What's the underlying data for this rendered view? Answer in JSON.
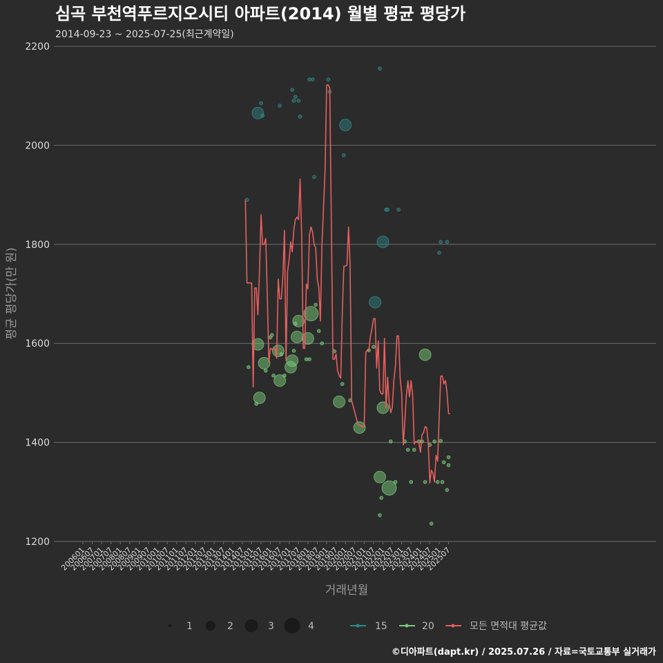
{
  "header": {
    "title": "심곡 부천역푸르지오시티 아파트(2014) 월별 평균 평당가",
    "subtitle": "2014-09-23 ~ 2025-07-25(최근계약일)"
  },
  "footer": {
    "credit": "©디아파트(dapt.kr) / 2025.07.26 / 자료=국토교통부 실거래가"
  },
  "legend": {
    "sizes": [
      "1",
      "2",
      "3",
      "4"
    ],
    "series": [
      "15",
      "20",
      "모든 면적대 평균값"
    ]
  },
  "colors": {
    "background": "#2b2b2b",
    "grid": "#6e6e6e",
    "series_15": "#2a7a7a",
    "series_20": "#6abf69",
    "average_line": "#e8605f"
  },
  "chart_data": {
    "type": "scatter",
    "title": "심곡 부천역푸르지오시티 아파트(2014) 월별 평균 평당가",
    "xlabel": "거래년월",
    "ylabel": "평균 평당가(만 원)",
    "ylim": [
      1200,
      2200
    ],
    "yticks": [
      1200,
      1400,
      1600,
      1800,
      2000,
      2200
    ],
    "xlim": [
      "2006-01",
      "2025-07"
    ],
    "xticks": [
      "200601",
      "200607",
      "200701",
      "200707",
      "200801",
      "200807",
      "200901",
      "200907",
      "201001",
      "201007",
      "201101",
      "201107",
      "201201",
      "201207",
      "201301",
      "201307",
      "201401",
      "201407",
      "201501",
      "201507",
      "201601",
      "201607",
      "201701",
      "201707",
      "201801",
      "201807",
      "201901",
      "201907",
      "202001",
      "202007",
      "202101",
      "202107",
      "202201",
      "202207",
      "202301",
      "202307",
      "202401",
      "202407",
      "202501",
      "202507"
    ],
    "grid": true,
    "legend_position": "bottom",
    "series": [
      {
        "name": "15",
        "points": [
          {
            "x": "2014-10",
            "y": 1890,
            "count": 1
          },
          {
            "x": "2015-05",
            "y": 2065,
            "count": 2
          },
          {
            "x": "2015-07",
            "y": 2085,
            "count": 1
          },
          {
            "x": "2015-08",
            "y": 2060,
            "count": 1
          },
          {
            "x": "2016-07",
            "y": 2080,
            "count": 1
          },
          {
            "x": "2017-03",
            "y": 2112,
            "count": 1
          },
          {
            "x": "2017-04",
            "y": 2090,
            "count": 1
          },
          {
            "x": "2017-05",
            "y": 2098,
            "count": 1
          },
          {
            "x": "2017-07",
            "y": 2090,
            "count": 1
          },
          {
            "x": "2017-08",
            "y": 2058,
            "count": 1
          },
          {
            "x": "2018-02",
            "y": 2133,
            "count": 1
          },
          {
            "x": "2018-04",
            "y": 2133,
            "count": 1
          },
          {
            "x": "2018-05",
            "y": 1936,
            "count": 1
          },
          {
            "x": "2019-02",
            "y": 2133,
            "count": 1
          },
          {
            "x": "2019-03",
            "y": 2108,
            "count": 1
          },
          {
            "x": "2019-12",
            "y": 1980,
            "count": 1
          },
          {
            "x": "2020-01",
            "y": 2041,
            "count": 2
          },
          {
            "x": "2021-08",
            "y": 1683,
            "count": 2
          },
          {
            "x": "2021-11",
            "y": 2155,
            "count": 1
          },
          {
            "x": "2022-01",
            "y": 1805,
            "count": 2
          },
          {
            "x": "2022-03",
            "y": 1870,
            "count": 1
          },
          {
            "x": "2022-04",
            "y": 1870,
            "count": 1
          },
          {
            "x": "2022-11",
            "y": 1870,
            "count": 1
          },
          {
            "x": "2025-01",
            "y": 1783,
            "count": 1
          },
          {
            "x": "2025-02",
            "y": 1805,
            "count": 1
          },
          {
            "x": "2025-06",
            "y": 1805,
            "count": 1
          }
        ]
      },
      {
        "name": "20",
        "points": [
          {
            "x": "2014-11",
            "y": 1552,
            "count": 1
          },
          {
            "x": "2015-04",
            "y": 1478,
            "count": 1
          },
          {
            "x": "2015-05",
            "y": 1598,
            "count": 2
          },
          {
            "x": "2015-06",
            "y": 1490,
            "count": 2
          },
          {
            "x": "2015-09",
            "y": 1560,
            "count": 2
          },
          {
            "x": "2015-10",
            "y": 1545,
            "count": 1
          },
          {
            "x": "2016-01",
            "y": 1612,
            "count": 1
          },
          {
            "x": "2016-02",
            "y": 1617,
            "count": 1
          },
          {
            "x": "2016-03",
            "y": 1535,
            "count": 1
          },
          {
            "x": "2016-06",
            "y": 1585,
            "count": 2
          },
          {
            "x": "2016-07",
            "y": 1525,
            "count": 2
          },
          {
            "x": "2016-08",
            "y": 1578,
            "count": 1
          },
          {
            "x": "2016-10",
            "y": 1535,
            "count": 1
          },
          {
            "x": "2017-02",
            "y": 1552,
            "count": 2
          },
          {
            "x": "2017-03",
            "y": 1565,
            "count": 2
          },
          {
            "x": "2017-04",
            "y": 1585,
            "count": 1
          },
          {
            "x": "2017-05",
            "y": 1640,
            "count": 1
          },
          {
            "x": "2017-06",
            "y": 1613,
            "count": 2
          },
          {
            "x": "2017-07",
            "y": 1645,
            "count": 2
          },
          {
            "x": "2017-12",
            "y": 1568,
            "count": 1
          },
          {
            "x": "2018-01",
            "y": 1610,
            "count": 2
          },
          {
            "x": "2018-02",
            "y": 1568,
            "count": 1
          },
          {
            "x": "2018-03",
            "y": 1660,
            "count": 3
          },
          {
            "x": "2018-06",
            "y": 1678,
            "count": 1
          },
          {
            "x": "2018-08",
            "y": 1625,
            "count": 1
          },
          {
            "x": "2018-10",
            "y": 1600,
            "count": 1
          },
          {
            "x": "2019-06",
            "y": 1584,
            "count": 1
          },
          {
            "x": "2019-09",
            "y": 1482,
            "count": 2
          },
          {
            "x": "2019-11",
            "y": 1518,
            "count": 1
          },
          {
            "x": "2020-04",
            "y": 1485,
            "count": 1
          },
          {
            "x": "2020-10",
            "y": 1430,
            "count": 2
          },
          {
            "x": "2021-04",
            "y": 1586,
            "count": 1
          },
          {
            "x": "2021-07",
            "y": 1593,
            "count": 1
          },
          {
            "x": "2021-11",
            "y": 1253,
            "count": 1
          },
          {
            "x": "2021-11",
            "y": 1330,
            "count": 2
          },
          {
            "x": "2021-12",
            "y": 1288,
            "count": 1
          },
          {
            "x": "2022-01",
            "y": 1470,
            "count": 2
          },
          {
            "x": "2022-05",
            "y": 1308,
            "count": 3
          },
          {
            "x": "2022-06",
            "y": 1402,
            "count": 1
          },
          {
            "x": "2022-09",
            "y": 1320,
            "count": 1
          },
          {
            "x": "2023-03",
            "y": 1402,
            "count": 1
          },
          {
            "x": "2023-05",
            "y": 1385,
            "count": 1
          },
          {
            "x": "2023-07",
            "y": 1320,
            "count": 1
          },
          {
            "x": "2023-09",
            "y": 1385,
            "count": 1
          },
          {
            "x": "2023-12",
            "y": 1402,
            "count": 1
          },
          {
            "x": "2024-02",
            "y": 1402,
            "count": 1
          },
          {
            "x": "2024-04",
            "y": 1320,
            "count": 1
          },
          {
            "x": "2024-04",
            "y": 1577,
            "count": 2
          },
          {
            "x": "2024-07",
            "y": 1395,
            "count": 1
          },
          {
            "x": "2024-08",
            "y": 1236,
            "count": 1
          },
          {
            "x": "2024-10",
            "y": 1402,
            "count": 1
          },
          {
            "x": "2024-12",
            "y": 1320,
            "count": 1
          },
          {
            "x": "2025-02",
            "y": 1403,
            "count": 1
          },
          {
            "x": "2025-03",
            "y": 1320,
            "count": 1
          },
          {
            "x": "2025-04",
            "y": 1360,
            "count": 1
          },
          {
            "x": "2025-06",
            "y": 1304,
            "count": 1
          },
          {
            "x": "2025-07",
            "y": 1370,
            "count": 1
          },
          {
            "x": "2025-07",
            "y": 1354,
            "count": 1
          }
        ]
      },
      {
        "name": "모든 면적대 평균값",
        "type": "line",
        "points": [
          {
            "x": "2014-09",
            "y": 1890
          },
          {
            "x": "2014-10",
            "y": 1722
          },
          {
            "x": "2014-11",
            "y": 1722
          },
          {
            "x": "2014-12",
            "y": 1722
          },
          {
            "x": "2015-01",
            "y": 1722
          },
          {
            "x": "2015-02",
            "y": 1512
          },
          {
            "x": "2015-03",
            "y": 1712
          },
          {
            "x": "2015-04",
            "y": 1712
          },
          {
            "x": "2015-05",
            "y": 1658
          },
          {
            "x": "2015-06",
            "y": 1745
          },
          {
            "x": "2015-07",
            "y": 1860
          },
          {
            "x": "2015-08",
            "y": 1800
          },
          {
            "x": "2015-09",
            "y": 1800
          },
          {
            "x": "2015-10",
            "y": 1812
          },
          {
            "x": "2015-11",
            "y": 1700
          },
          {
            "x": "2015-12",
            "y": 1562
          },
          {
            "x": "2016-01",
            "y": 1590
          },
          {
            "x": "2016-02",
            "y": 1588
          },
          {
            "x": "2016-03",
            "y": 1588
          },
          {
            "x": "2016-04",
            "y": 1590
          },
          {
            "x": "2016-05",
            "y": 1570
          },
          {
            "x": "2016-06",
            "y": 1730
          },
          {
            "x": "2016-07",
            "y": 1690
          },
          {
            "x": "2016-08",
            "y": 1690
          },
          {
            "x": "2016-09",
            "y": 1735
          },
          {
            "x": "2016-10",
            "y": 1828
          },
          {
            "x": "2016-11",
            "y": 1565
          },
          {
            "x": "2016-12",
            "y": 1745
          },
          {
            "x": "2017-01",
            "y": 1770
          },
          {
            "x": "2017-02",
            "y": 1805
          },
          {
            "x": "2017-03",
            "y": 1785
          },
          {
            "x": "2017-04",
            "y": 1830
          },
          {
            "x": "2017-05",
            "y": 1850
          },
          {
            "x": "2017-06",
            "y": 1855
          },
          {
            "x": "2017-07",
            "y": 1850
          },
          {
            "x": "2017-08",
            "y": 1932
          },
          {
            "x": "2017-09",
            "y": 1820
          },
          {
            "x": "2017-10",
            "y": 1590
          },
          {
            "x": "2017-11",
            "y": 1590
          },
          {
            "x": "2017-12",
            "y": 1720
          },
          {
            "x": "2018-01",
            "y": 1710
          },
          {
            "x": "2018-02",
            "y": 1820
          },
          {
            "x": "2018-03",
            "y": 1835
          },
          {
            "x": "2018-04",
            "y": 1825
          },
          {
            "x": "2018-05",
            "y": 1800
          },
          {
            "x": "2018-06",
            "y": 1792
          },
          {
            "x": "2018-07",
            "y": 1730
          },
          {
            "x": "2018-08",
            "y": 1712
          },
          {
            "x": "2018-09",
            "y": 1645
          },
          {
            "x": "2018-10",
            "y": 1800
          },
          {
            "x": "2018-11",
            "y": 1875
          },
          {
            "x": "2018-12",
            "y": 1950
          },
          {
            "x": "2019-01",
            "y": 2122
          },
          {
            "x": "2019-02",
            "y": 2122
          },
          {
            "x": "2019-03",
            "y": 2115
          },
          {
            "x": "2019-04",
            "y": 1840
          },
          {
            "x": "2019-05",
            "y": 1568
          },
          {
            "x": "2019-06",
            "y": 1568
          },
          {
            "x": "2019-07",
            "y": 1578
          },
          {
            "x": "2019-08",
            "y": 1545
          },
          {
            "x": "2019-09",
            "y": 1535
          },
          {
            "x": "2019-10",
            "y": 1530
          },
          {
            "x": "2019-11",
            "y": 1660
          },
          {
            "x": "2019-12",
            "y": 1756
          },
          {
            "x": "2020-01",
            "y": 1756
          },
          {
            "x": "2020-02",
            "y": 1758
          },
          {
            "x": "2020-03",
            "y": 1835
          },
          {
            "x": "2020-04",
            "y": 1760
          },
          {
            "x": "2020-05",
            "y": 1485
          },
          {
            "x": "2020-09",
            "y": 1436
          },
          {
            "x": "2020-10",
            "y": 1435
          },
          {
            "x": "2020-11",
            "y": 1433
          },
          {
            "x": "2020-12",
            "y": 1432
          },
          {
            "x": "2021-01",
            "y": 1432
          },
          {
            "x": "2021-02",
            "y": 1582
          },
          {
            "x": "2021-03",
            "y": 1586
          },
          {
            "x": "2021-04",
            "y": 1586
          },
          {
            "x": "2021-05",
            "y": 1615
          },
          {
            "x": "2021-06",
            "y": 1630
          },
          {
            "x": "2021-07",
            "y": 1650
          },
          {
            "x": "2021-08",
            "y": 1650
          },
          {
            "x": "2021-09",
            "y": 1550
          },
          {
            "x": "2021-10",
            "y": 1605
          },
          {
            "x": "2021-11",
            "y": 1505
          },
          {
            "x": "2021-12",
            "y": 1498
          },
          {
            "x": "2022-01",
            "y": 1498
          },
          {
            "x": "2022-02",
            "y": 1610
          },
          {
            "x": "2022-03",
            "y": 1470
          },
          {
            "x": "2022-04",
            "y": 1532
          },
          {
            "x": "2022-05",
            "y": 1480
          },
          {
            "x": "2022-06",
            "y": 1460
          },
          {
            "x": "2022-07",
            "y": 1470
          },
          {
            "x": "2022-08",
            "y": 1525
          },
          {
            "x": "2022-09",
            "y": 1555
          },
          {
            "x": "2022-10",
            "y": 1615
          },
          {
            "x": "2022-11",
            "y": 1615
          },
          {
            "x": "2022-12",
            "y": 1530
          },
          {
            "x": "2023-01",
            "y": 1500
          },
          {
            "x": "2023-02",
            "y": 1395
          },
          {
            "x": "2023-03",
            "y": 1440
          },
          {
            "x": "2023-04",
            "y": 1495
          },
          {
            "x": "2023-05",
            "y": 1525
          },
          {
            "x": "2023-06",
            "y": 1492
          },
          {
            "x": "2023-07",
            "y": 1525
          },
          {
            "x": "2023-08",
            "y": 1495
          },
          {
            "x": "2023-09",
            "y": 1397
          },
          {
            "x": "2023-10",
            "y": 1402
          },
          {
            "x": "2023-11",
            "y": 1400
          },
          {
            "x": "2023-12",
            "y": 1400
          },
          {
            "x": "2024-01",
            "y": 1380
          },
          {
            "x": "2024-02",
            "y": 1415
          },
          {
            "x": "2024-03",
            "y": 1420
          },
          {
            "x": "2024-04",
            "y": 1432
          },
          {
            "x": "2024-05",
            "y": 1430
          },
          {
            "x": "2024-06",
            "y": 1400
          },
          {
            "x": "2024-07",
            "y": 1318
          },
          {
            "x": "2024-08",
            "y": 1344
          },
          {
            "x": "2024-09",
            "y": 1338
          },
          {
            "x": "2024-10",
            "y": 1320
          },
          {
            "x": "2024-11",
            "y": 1374
          },
          {
            "x": "2024-12",
            "y": 1362
          },
          {
            "x": "2025-01",
            "y": 1450
          },
          {
            "x": "2025-02",
            "y": 1534
          },
          {
            "x": "2025-03",
            "y": 1534
          },
          {
            "x": "2025-04",
            "y": 1518
          },
          {
            "x": "2025-05",
            "y": 1525
          },
          {
            "x": "2025-06",
            "y": 1502
          },
          {
            "x": "2025-07",
            "y": 1458
          },
          {
            "x": "2025-08",
            "y": 1458
          }
        ]
      }
    ]
  }
}
